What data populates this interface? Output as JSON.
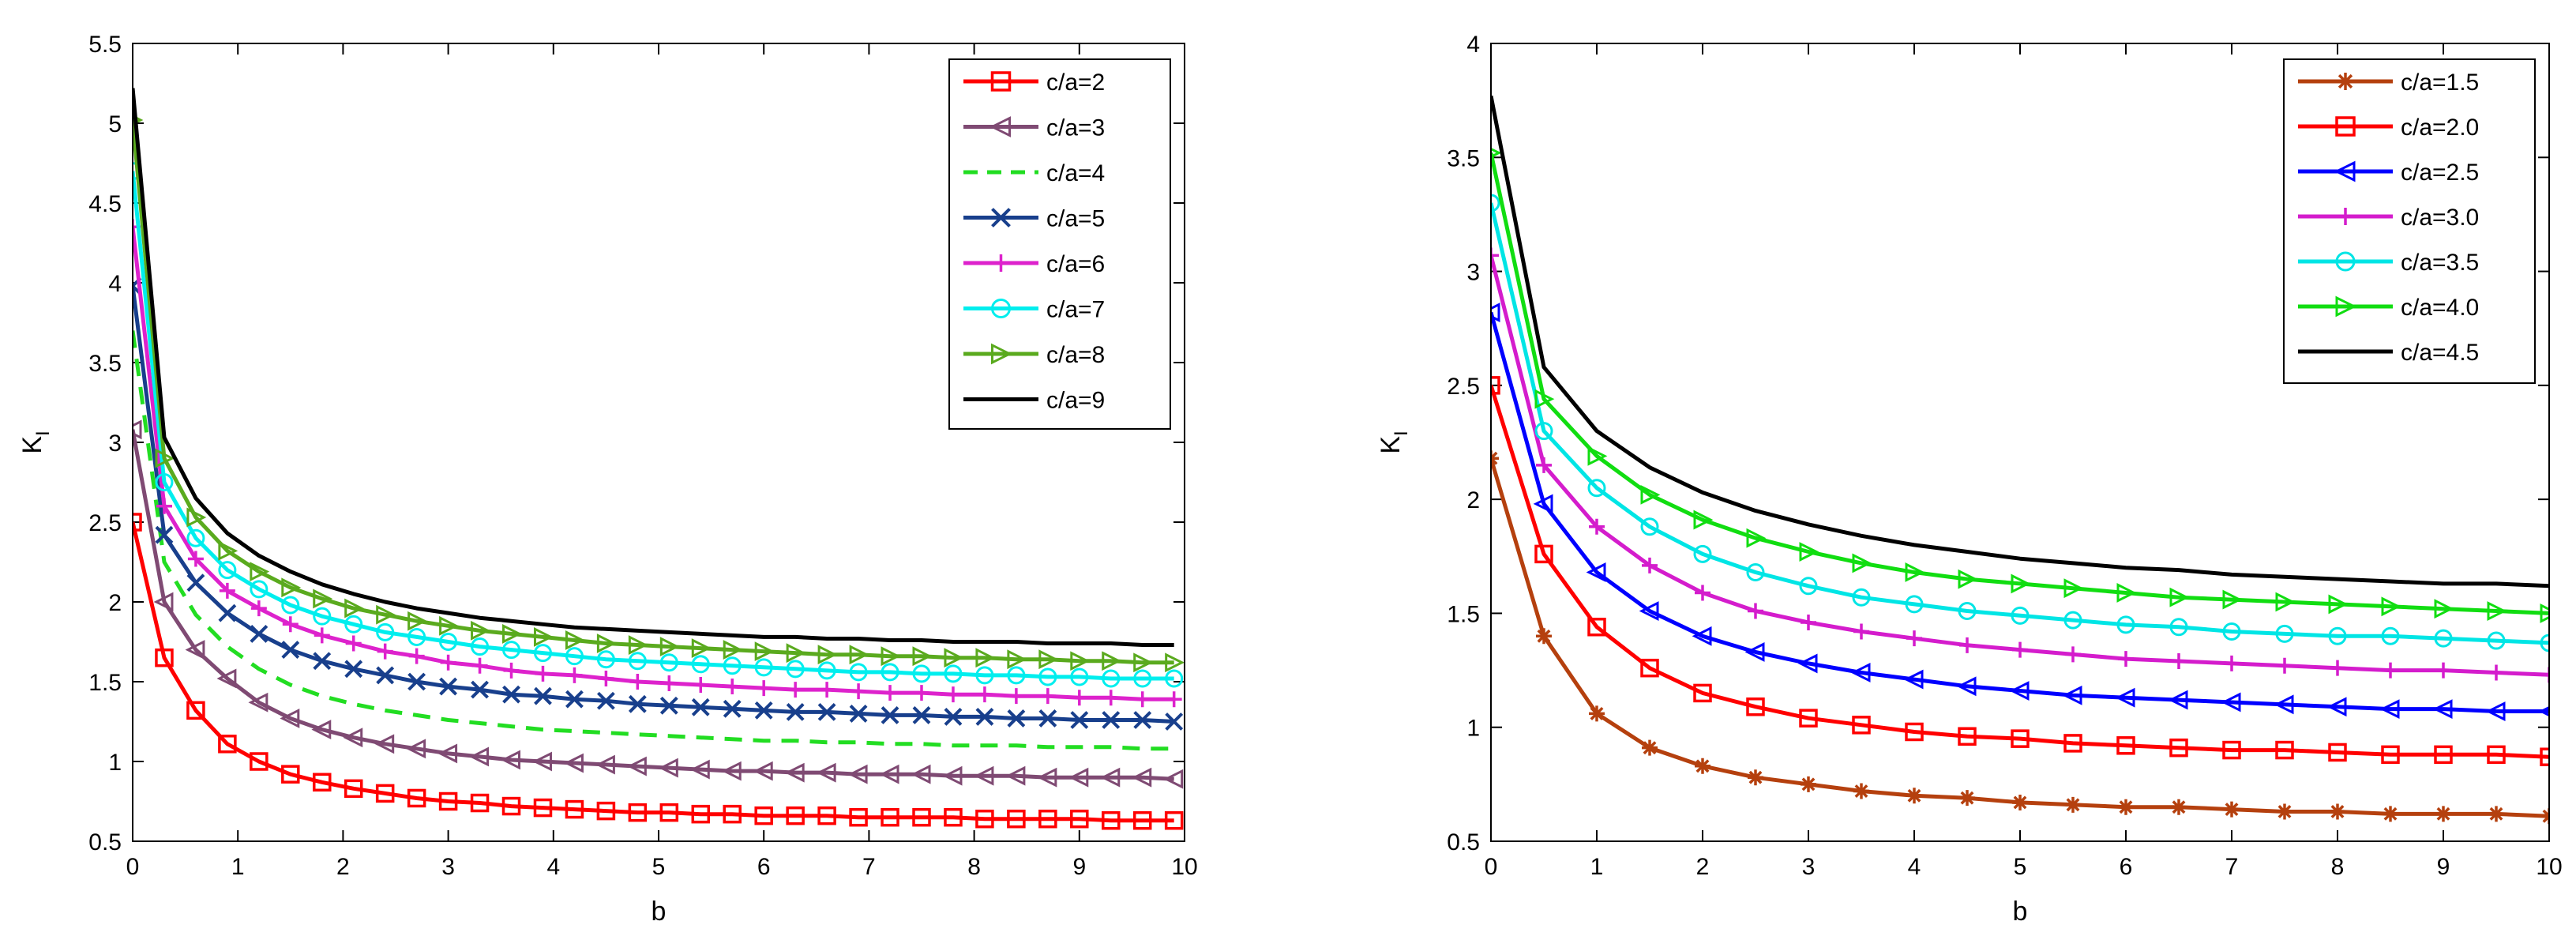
{
  "chart_data": [
    {
      "type": "line",
      "title": "",
      "xlabel": "b",
      "ylabel": "K",
      "ylabel_sub": "I",
      "xlim": [
        0,
        10
      ],
      "ylim": [
        0.5,
        5.5
      ],
      "xticks": [
        0,
        1,
        2,
        3,
        4,
        5,
        6,
        7,
        8,
        9,
        10
      ],
      "yticks": [
        0.5,
        1,
        1.5,
        2,
        2.5,
        3,
        3.5,
        4,
        4.5,
        5,
        5.5
      ],
      "ytick_labels": [
        "0.5",
        "1",
        "1.5",
        "2",
        "2.5",
        "3",
        "3.5",
        "4",
        "4.5",
        "5",
        "5.5"
      ],
      "legend_position": "top-right",
      "x": [
        0,
        0.3,
        0.6,
        0.9,
        1.2,
        1.5,
        1.8,
        2.1,
        2.4,
        2.7,
        3.0,
        3.3,
        3.6,
        3.9,
        4.2,
        4.5,
        4.8,
        5.1,
        5.4,
        5.7,
        6.0,
        6.3,
        6.6,
        6.9,
        7.2,
        7.5,
        7.8,
        8.1,
        8.4,
        8.7,
        9.0,
        9.3,
        9.6,
        9.9
      ],
      "series": [
        {
          "name": "c/a=2",
          "color": "#ff0000",
          "marker": "square",
          "dash": "",
          "values": [
            2.5,
            1.65,
            1.32,
            1.11,
            1.0,
            0.92,
            0.87,
            0.83,
            0.8,
            0.77,
            0.75,
            0.74,
            0.72,
            0.71,
            0.7,
            0.69,
            0.68,
            0.68,
            0.67,
            0.67,
            0.66,
            0.66,
            0.66,
            0.65,
            0.65,
            0.65,
            0.65,
            0.64,
            0.64,
            0.64,
            0.64,
            0.63,
            0.63,
            0.63
          ]
        },
        {
          "name": "c/a=3",
          "color": "#7f4a73",
          "marker": "triangle-left",
          "dash": "",
          "values": [
            3.08,
            2.0,
            1.7,
            1.52,
            1.37,
            1.27,
            1.2,
            1.15,
            1.11,
            1.08,
            1.05,
            1.03,
            1.01,
            1.0,
            0.99,
            0.98,
            0.97,
            0.96,
            0.95,
            0.94,
            0.94,
            0.93,
            0.93,
            0.92,
            0.92,
            0.92,
            0.91,
            0.91,
            0.91,
            0.9,
            0.9,
            0.9,
            0.9,
            0.89
          ]
        },
        {
          "name": "c/a=4",
          "color": "#22dd22",
          "marker": "none",
          "dash": "22,14",
          "values": [
            3.7,
            2.25,
            1.92,
            1.72,
            1.58,
            1.48,
            1.41,
            1.36,
            1.32,
            1.29,
            1.26,
            1.24,
            1.22,
            1.2,
            1.19,
            1.18,
            1.17,
            1.16,
            1.15,
            1.14,
            1.13,
            1.13,
            1.12,
            1.12,
            1.11,
            1.11,
            1.1,
            1.1,
            1.1,
            1.09,
            1.09,
            1.09,
            1.08,
            1.08
          ]
        },
        {
          "name": "c/a=5",
          "color": "#183f8c",
          "marker": "x",
          "dash": "",
          "values": [
            3.98,
            2.42,
            2.12,
            1.93,
            1.8,
            1.7,
            1.63,
            1.58,
            1.54,
            1.5,
            1.47,
            1.45,
            1.42,
            1.41,
            1.39,
            1.38,
            1.36,
            1.35,
            1.34,
            1.33,
            1.32,
            1.31,
            1.31,
            1.3,
            1.29,
            1.29,
            1.28,
            1.28,
            1.27,
            1.27,
            1.26,
            1.26,
            1.26,
            1.25
          ]
        },
        {
          "name": "c/a=6",
          "color": "#dd22cc",
          "marker": "plus",
          "dash": "",
          "values": [
            4.35,
            2.6,
            2.27,
            2.07,
            1.96,
            1.86,
            1.79,
            1.74,
            1.69,
            1.66,
            1.62,
            1.6,
            1.57,
            1.55,
            1.54,
            1.52,
            1.5,
            1.49,
            1.48,
            1.47,
            1.46,
            1.45,
            1.45,
            1.44,
            1.43,
            1.43,
            1.42,
            1.42,
            1.41,
            1.41,
            1.4,
            1.4,
            1.39,
            1.39
          ]
        },
        {
          "name": "c/a=7",
          "color": "#00eeee",
          "marker": "circle",
          "dash": "",
          "values": [
            4.7,
            2.75,
            2.4,
            2.2,
            2.08,
            1.98,
            1.91,
            1.86,
            1.81,
            1.78,
            1.75,
            1.72,
            1.7,
            1.68,
            1.66,
            1.64,
            1.63,
            1.62,
            1.61,
            1.6,
            1.59,
            1.58,
            1.57,
            1.56,
            1.56,
            1.55,
            1.55,
            1.54,
            1.54,
            1.53,
            1.53,
            1.52,
            1.52,
            1.52
          ]
        },
        {
          "name": "c/a=8",
          "color": "#5aaa1e",
          "marker": "triangle-right",
          "dash": "",
          "values": [
            5.02,
            2.9,
            2.53,
            2.32,
            2.19,
            2.09,
            2.02,
            1.96,
            1.92,
            1.88,
            1.85,
            1.82,
            1.8,
            1.78,
            1.76,
            1.74,
            1.73,
            1.72,
            1.71,
            1.7,
            1.69,
            1.68,
            1.67,
            1.67,
            1.66,
            1.66,
            1.65,
            1.65,
            1.64,
            1.64,
            1.63,
            1.63,
            1.62,
            1.62
          ]
        },
        {
          "name": "c/a=9",
          "color": "#000000",
          "marker": "none",
          "dash": "",
          "values": [
            5.22,
            3.03,
            2.65,
            2.43,
            2.29,
            2.19,
            2.11,
            2.05,
            2.0,
            1.96,
            1.93,
            1.9,
            1.88,
            1.86,
            1.84,
            1.83,
            1.82,
            1.81,
            1.8,
            1.79,
            1.78,
            1.78,
            1.77,
            1.77,
            1.76,
            1.76,
            1.75,
            1.75,
            1.75,
            1.74,
            1.74,
            1.74,
            1.73,
            1.73
          ]
        }
      ]
    },
    {
      "type": "line",
      "title": "",
      "xlabel": "b",
      "ylabel": "K",
      "ylabel_sub": "I",
      "xlim": [
        0,
        10
      ],
      "ylim": [
        0.5,
        4
      ],
      "xticks": [
        0,
        1,
        2,
        3,
        4,
        5,
        6,
        7,
        8,
        9,
        10
      ],
      "yticks": [
        0.5,
        1,
        1.5,
        2,
        2.5,
        3,
        3.5,
        4
      ],
      "ytick_labels": [
        "0.5",
        "1",
        "1.5",
        "2",
        "2.5",
        "3",
        "3.5",
        "4"
      ],
      "legend_position": "top-right",
      "x": [
        0,
        0.5,
        1.0,
        1.5,
        2.0,
        2.5,
        3.0,
        3.5,
        4.0,
        4.5,
        5.0,
        5.5,
        6.0,
        6.5,
        7.0,
        7.5,
        8.0,
        8.5,
        9.0,
        9.5,
        10.0
      ],
      "series": [
        {
          "name": "c/a=1.5",
          "color": "#b5400e",
          "marker": "star",
          "dash": "",
          "values": [
            2.18,
            1.4,
            1.06,
            0.91,
            0.83,
            0.78,
            0.75,
            0.72,
            0.7,
            0.69,
            0.67,
            0.66,
            0.65,
            0.65,
            0.64,
            0.63,
            0.63,
            0.62,
            0.62,
            0.62,
            0.61
          ]
        },
        {
          "name": "c/a=2.0",
          "color": "#ff0000",
          "marker": "square",
          "dash": "",
          "values": [
            2.5,
            1.76,
            1.44,
            1.26,
            1.15,
            1.09,
            1.04,
            1.01,
            0.98,
            0.96,
            0.95,
            0.93,
            0.92,
            0.91,
            0.9,
            0.9,
            0.89,
            0.88,
            0.88,
            0.88,
            0.87
          ]
        },
        {
          "name": "c/a=2.5",
          "color": "#0000ff",
          "marker": "triangle-left",
          "dash": "",
          "values": [
            2.82,
            1.98,
            1.68,
            1.51,
            1.4,
            1.33,
            1.28,
            1.24,
            1.21,
            1.18,
            1.16,
            1.14,
            1.13,
            1.12,
            1.11,
            1.1,
            1.09,
            1.08,
            1.08,
            1.07,
            1.07
          ]
        },
        {
          "name": "c/a=3.0",
          "color": "#d41ccc",
          "marker": "plus",
          "dash": "",
          "values": [
            3.07,
            2.15,
            1.88,
            1.71,
            1.59,
            1.51,
            1.46,
            1.42,
            1.39,
            1.36,
            1.34,
            1.32,
            1.3,
            1.29,
            1.28,
            1.27,
            1.26,
            1.25,
            1.25,
            1.24,
            1.23
          ]
        },
        {
          "name": "c/a=3.5",
          "color": "#00e5e5",
          "marker": "circle",
          "dash": "",
          "values": [
            3.3,
            2.3,
            2.05,
            1.88,
            1.76,
            1.68,
            1.62,
            1.57,
            1.54,
            1.51,
            1.49,
            1.47,
            1.45,
            1.44,
            1.42,
            1.41,
            1.4,
            1.4,
            1.39,
            1.38,
            1.37
          ]
        },
        {
          "name": "c/a=4.0",
          "color": "#11dd11",
          "marker": "triangle-right",
          "dash": "",
          "values": [
            3.52,
            2.44,
            2.19,
            2.02,
            1.91,
            1.83,
            1.77,
            1.72,
            1.68,
            1.65,
            1.63,
            1.61,
            1.59,
            1.57,
            1.56,
            1.55,
            1.54,
            1.53,
            1.52,
            1.51,
            1.5
          ]
        },
        {
          "name": "c/a=4.5",
          "color": "#000000",
          "marker": "none",
          "dash": "",
          "values": [
            3.77,
            2.58,
            2.3,
            2.14,
            2.03,
            1.95,
            1.89,
            1.84,
            1.8,
            1.77,
            1.74,
            1.72,
            1.7,
            1.69,
            1.67,
            1.66,
            1.65,
            1.64,
            1.63,
            1.63,
            1.62
          ]
        }
      ]
    }
  ]
}
